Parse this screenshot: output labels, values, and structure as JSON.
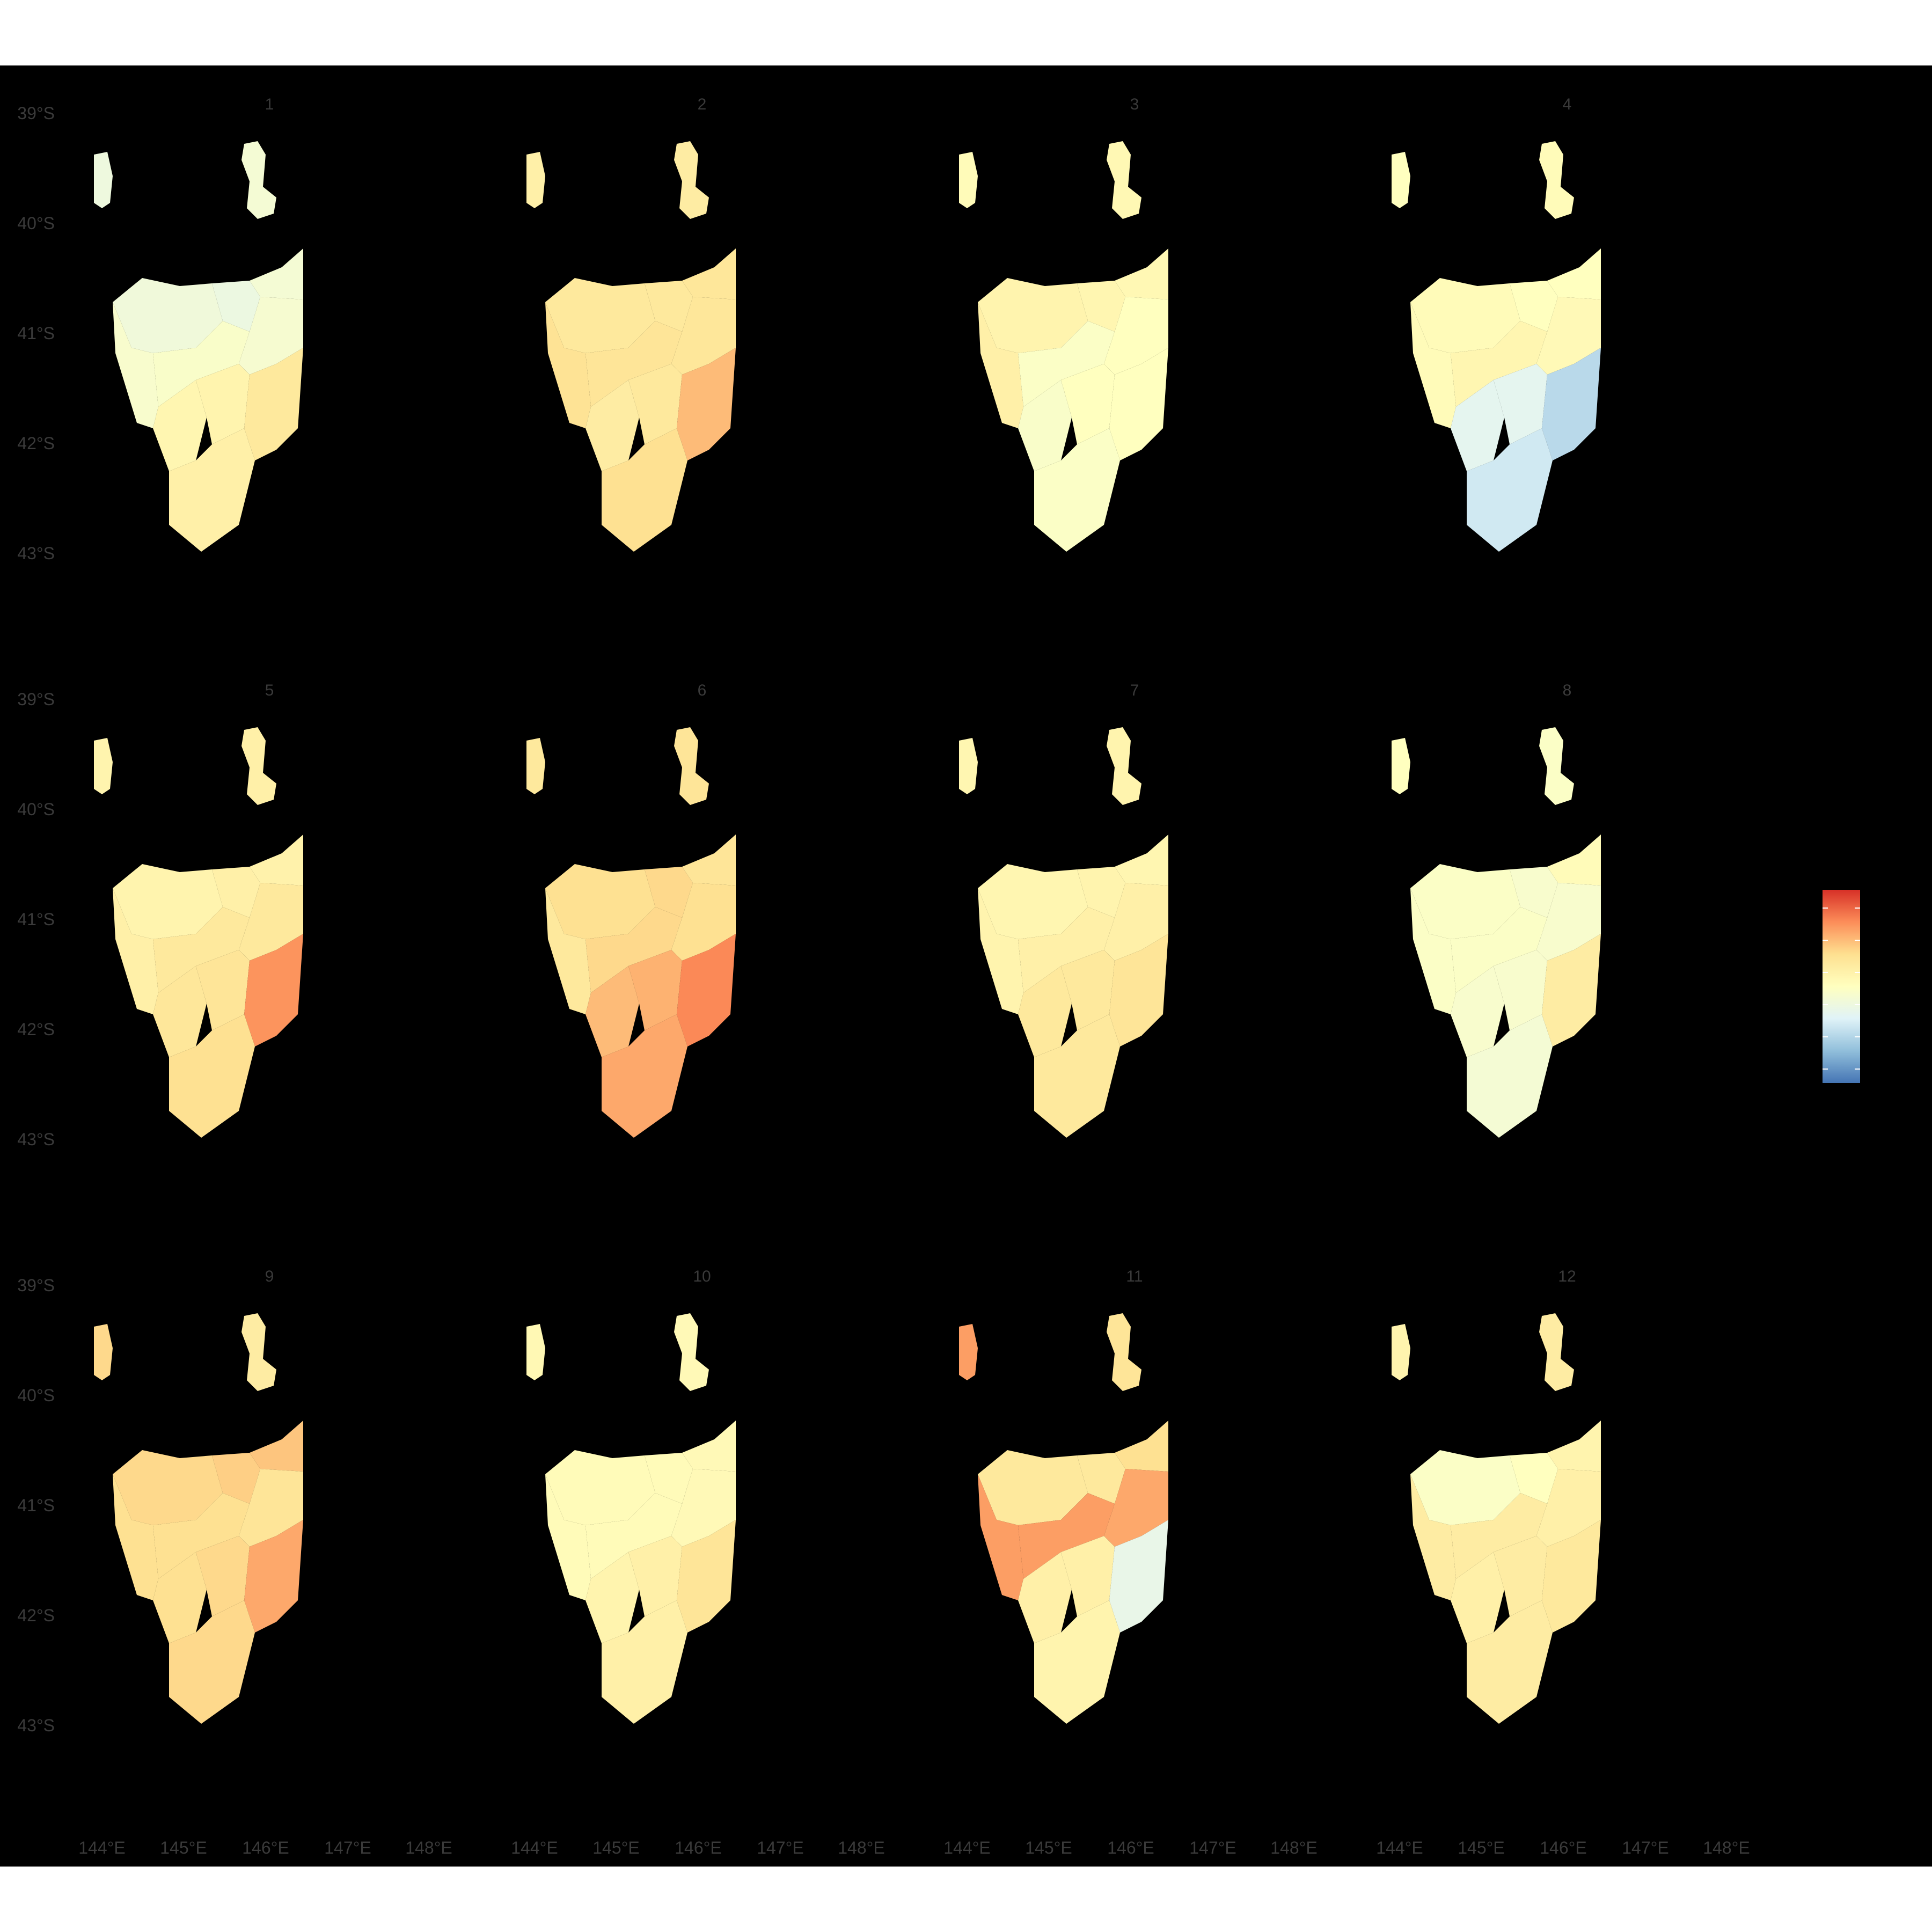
{
  "chart_data": {
    "type": "choropleth-facets",
    "title": "",
    "panels": [
      {
        "label": "1",
        "values": [
          0.42,
          0.4,
          0.44,
          0.46,
          0.47,
          0.45,
          0.55,
          0.56,
          0.62,
          0.58,
          0.41,
          0.44
        ]
      },
      {
        "label": "2",
        "values": [
          0.62,
          0.62,
          0.63,
          0.65,
          0.64,
          0.63,
          0.6,
          0.62,
          0.74,
          0.66,
          0.58,
          0.6
        ]
      },
      {
        "label": "3",
        "values": [
          0.56,
          0.55,
          0.54,
          0.58,
          0.48,
          0.5,
          0.47,
          0.5,
          0.5,
          0.48,
          0.52,
          0.54
        ]
      },
      {
        "label": "4",
        "values": [
          0.52,
          0.5,
          0.5,
          0.52,
          0.55,
          0.53,
          0.36,
          0.36,
          0.25,
          0.3,
          0.5,
          0.52
        ]
      },
      {
        "label": "5",
        "values": [
          0.56,
          0.58,
          0.57,
          0.58,
          0.62,
          0.62,
          0.63,
          0.64,
          0.82,
          0.66,
          0.56,
          0.58
        ]
      },
      {
        "label": "6",
        "values": [
          0.66,
          0.68,
          0.64,
          0.62,
          0.68,
          0.66,
          0.74,
          0.76,
          0.84,
          0.78,
          0.62,
          0.64
        ]
      },
      {
        "label": "7",
        "values": [
          0.55,
          0.56,
          0.55,
          0.56,
          0.58,
          0.58,
          0.62,
          0.62,
          0.64,
          0.62,
          0.55,
          0.56
        ]
      },
      {
        "label": "8",
        "values": [
          0.48,
          0.46,
          0.52,
          0.48,
          0.48,
          0.46,
          0.46,
          0.46,
          0.6,
          0.44,
          0.5,
          0.48
        ]
      },
      {
        "label": "9",
        "values": [
          0.68,
          0.7,
          0.72,
          0.66,
          0.66,
          0.64,
          0.66,
          0.68,
          0.78,
          0.68,
          0.68,
          0.6
        ]
      },
      {
        "label": "10",
        "values": [
          0.52,
          0.52,
          0.53,
          0.52,
          0.52,
          0.53,
          0.56,
          0.58,
          0.64,
          0.58,
          0.54,
          0.53
        ]
      },
      {
        "label": "11",
        "values": [
          0.62,
          0.62,
          0.66,
          0.8,
          0.8,
          0.78,
          0.58,
          0.58,
          0.38,
          0.56,
          0.8,
          0.64
        ]
      },
      {
        "label": "12",
        "values": [
          0.48,
          0.5,
          0.56,
          0.6,
          0.6,
          0.58,
          0.58,
          0.6,
          0.62,
          0.6,
          0.56,
          0.6
        ]
      }
    ],
    "x_ticks": [
      "144°E",
      "145°E",
      "146°E",
      "147°E",
      "148°E"
    ],
    "y_ticks": [
      "39°S",
      "40°S",
      "41°S",
      "42°S",
      "43°S"
    ],
    "legend": {
      "position": "right",
      "palette": [
        "#4575b4",
        "#91bfdb",
        "#e0f3f8",
        "#ffffbf",
        "#fee090",
        "#fc8d59",
        "#d73027"
      ],
      "labels": []
    },
    "grid": false
  },
  "colors": {
    "background": "#000000",
    "text": "#3a3a3a",
    "outer": "#ffffff"
  }
}
